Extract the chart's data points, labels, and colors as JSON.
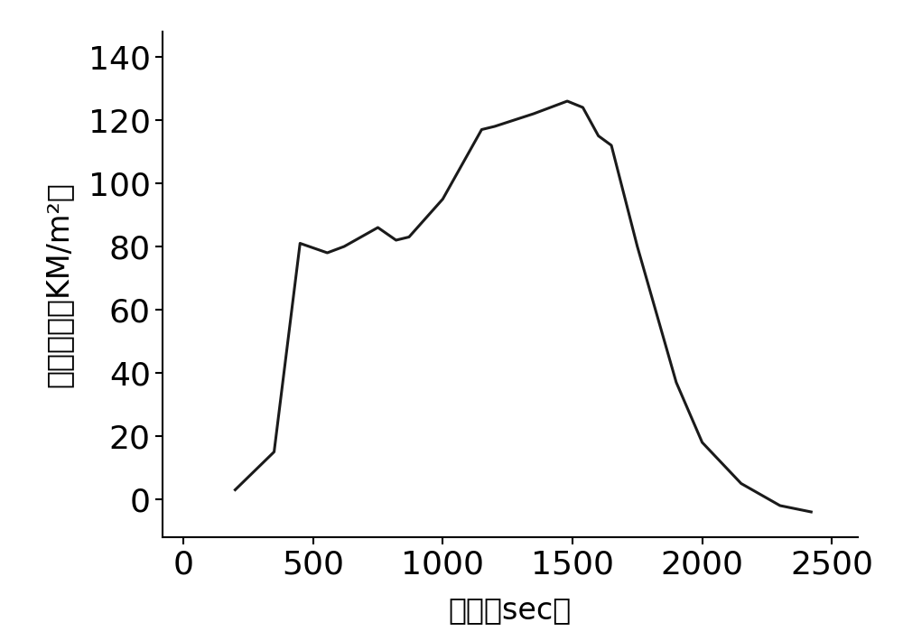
{
  "x": [
    200,
    350,
    450,
    555,
    620,
    750,
    820,
    870,
    1000,
    1150,
    1200,
    1350,
    1480,
    1540,
    1600,
    1650,
    1750,
    1900,
    2000,
    2150,
    2300,
    2420
  ],
  "y": [
    3,
    15,
    81,
    78,
    80,
    86,
    82,
    83,
    95,
    117,
    118,
    122,
    126,
    124,
    115,
    112,
    80,
    37,
    18,
    5,
    -2,
    -4
  ],
  "xlabel": "时间（sec）",
  "ylabel": "热流密度（KM/m²）",
  "xlim": [
    -80,
    2600
  ],
  "ylim": [
    -12,
    148
  ],
  "xticks": [
    0,
    500,
    1000,
    1500,
    2000,
    2500
  ],
  "yticks": [
    0,
    20,
    40,
    60,
    80,
    100,
    120,
    140
  ],
  "line_color": "#1a1a1a",
  "line_width": 2.2,
  "bg_color": "#ffffff",
  "tick_fontsize": 26,
  "xlabel_fontsize": 24,
  "ylabel_fontsize": 24
}
